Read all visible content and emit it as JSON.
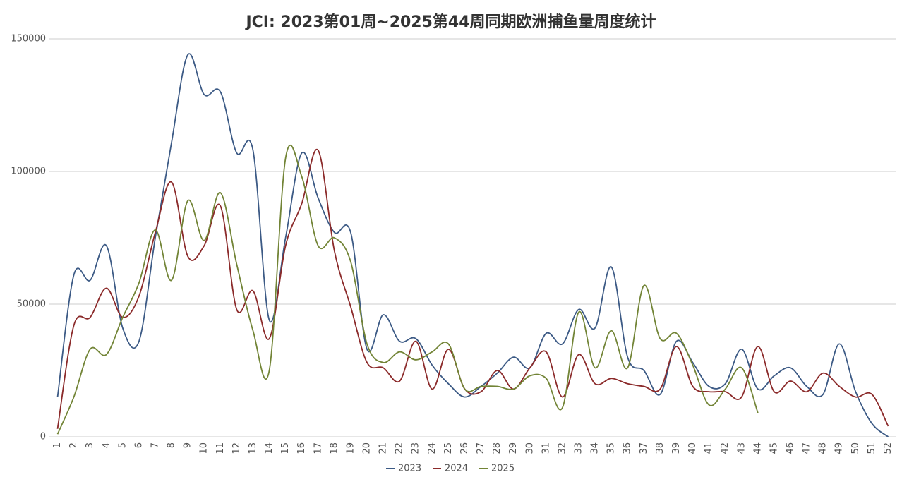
{
  "chart_data": {
    "type": "line",
    "title": "JCI: 2023第01周~2025第44周同期欧洲捕鱼量周度统计",
    "categories": [
      "1",
      "2",
      "3",
      "4",
      "5",
      "6",
      "7",
      "8",
      "9",
      "10",
      "11",
      "12",
      "13",
      "14",
      "15",
      "16",
      "17",
      "18",
      "19",
      "20",
      "21",
      "22",
      "23",
      "24",
      "25",
      "26",
      "27",
      "28",
      "29",
      "30",
      "31",
      "32",
      "33",
      "34",
      "35",
      "36",
      "37",
      "38",
      "39",
      "40",
      "41",
      "42",
      "43",
      "44",
      "45",
      "46",
      "47",
      "48",
      "49",
      "50",
      "51",
      "52"
    ],
    "series": [
      {
        "name": "2023",
        "color": "#3c5a85",
        "values": [
          15000,
          61000,
          59000,
          72000,
          41000,
          36000,
          75000,
          111000,
          144000,
          129000,
          130000,
          107000,
          108000,
          44000,
          75000,
          107000,
          90000,
          77000,
          77000,
          33000,
          46000,
          36000,
          37000,
          27000,
          20000,
          15000,
          19000,
          24000,
          30000,
          26000,
          39000,
          35000,
          48000,
          41000,
          64000,
          30000,
          25000,
          16000,
          36000,
          28000,
          19000,
          20000,
          33000,
          18000,
          23000,
          26000,
          19000,
          16000,
          35000,
          17000,
          5000,
          0
        ]
      },
      {
        "name": "2024",
        "color": "#8b2a2a",
        "values": [
          3000,
          42000,
          45000,
          56000,
          45000,
          53000,
          77000,
          96000,
          68000,
          72000,
          87000,
          48000,
          55000,
          37000,
          72000,
          88000,
          108000,
          70000,
          49000,
          28000,
          26000,
          21000,
          36000,
          18000,
          33000,
          18000,
          17000,
          25000,
          18000,
          26000,
          32000,
          15000,
          31000,
          20000,
          22000,
          20000,
          19000,
          18000,
          34000,
          19000,
          17000,
          17000,
          15000,
          34000,
          17000,
          21000,
          17000,
          24000,
          19000,
          15000,
          16000,
          4000
        ]
      },
      {
        "name": "2025",
        "color": "#728436",
        "values": [
          1000,
          15000,
          33000,
          31000,
          45000,
          58000,
          78000,
          59000,
          89000,
          74000,
          92000,
          65000,
          40000,
          25000,
          105000,
          98000,
          72000,
          75000,
          66000,
          35000,
          28000,
          32000,
          29000,
          32000,
          35000,
          18000,
          19000,
          19000,
          18000,
          23000,
          22000,
          11000,
          47000,
          26000,
          40000,
          26000,
          57000,
          37000,
          39000,
          27000,
          12000,
          18000,
          26000,
          9000,
          null,
          null,
          null,
          null,
          null,
          null,
          null,
          null
        ]
      }
    ],
    "ylim": [
      0,
      150000
    ],
    "yticks": [
      0,
      50000,
      100000,
      150000
    ],
    "grid": true,
    "legend": "bottom"
  }
}
